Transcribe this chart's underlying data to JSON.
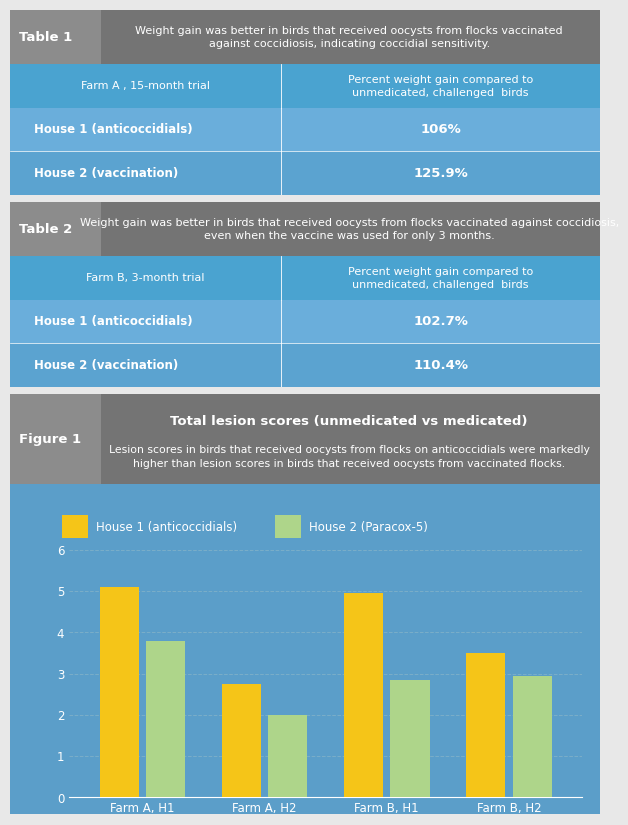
{
  "table1_label": "Table 1",
  "table1_header_text": "Weight gain was better in birds that received oocysts from flocks vaccinated\nagainst coccidiosis, indicating coccidial sensitivity.",
  "table1_col1_header": "Farm A , 15-month trial",
  "table1_col2_header": "Percent weight gain compared to\nunmedicated, challenged  birds",
  "table1_row1_label": "House 1 (anticoccidials)",
  "table1_row1_value": "106%",
  "table1_row2_label": "House 2 (vaccination)",
  "table1_row2_value": "125.9%",
  "table2_label": "Table 2",
  "table2_header_text": "Weight gain was better in birds that received oocysts from flocks vaccinated against coccidiosis,\neven when the vaccine was used for only 3 months.",
  "table2_col1_header": "Farm B, 3-month trial",
  "table2_col2_header": "Percent weight gain compared to\nunmedicated, challenged  birds",
  "table2_row1_label": "House 1 (anticoccidials)",
  "table2_row1_value": "102.7%",
  "table2_row2_label": "House 2 (vaccination)",
  "table2_row2_value": "110.4%",
  "fig1_label": "Figure 1",
  "fig1_title": "Total lesion scores (unmedicated vs medicated)",
  "fig1_subtitle": "Lesion scores in birds that received oocysts from flocks on anticoccidials were markedly\nhigher than lesion scores in birds that received oocysts from vaccinated flocks.",
  "legend1": "House 1 (anticoccidials)",
  "legend2": "House 2 (Paracox-5)",
  "bar_categories": [
    "Farm A, H1",
    "Farm A, H2",
    "Farm B, H1",
    "Farm B, H2"
  ],
  "bar_house1": [
    5.1,
    2.75,
    4.95,
    3.5
  ],
  "bar_house2": [
    3.8,
    2.0,
    2.85,
    2.95
  ],
  "color_gray_dark": "#747474",
  "color_blue_header": "#4aa3d0",
  "color_blue_bg": "#5b9ec9",
  "color_blue_row1": "#6aaedb",
  "color_blue_row2": "#5ba3d0",
  "color_white": "#ffffff",
  "color_bar_yellow": "#f5c518",
  "color_bar_green": "#aed58a",
  "color_grid": "#7aaec8",
  "color_label_left_bg": "#8c8c8c",
  "bg_color": "#e8e8e8"
}
